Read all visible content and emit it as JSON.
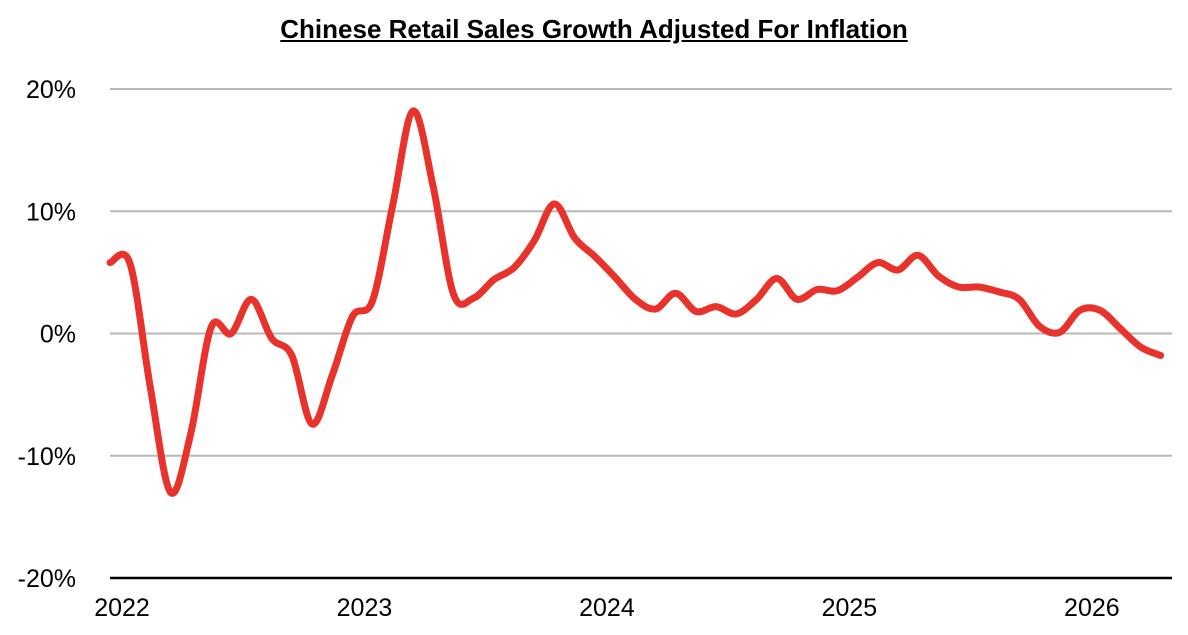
{
  "chart_data": {
    "type": "line",
    "title": "Chinese Retail Sales Growth Adjusted For Inflation",
    "xlabel": "",
    "ylabel": "",
    "x_ticks": [
      "2022",
      "2023",
      "2024",
      "2025",
      "2026"
    ],
    "y_ticks": [
      "20%",
      "10%",
      "0%",
      "-10%",
      "-20%"
    ],
    "ylim": [
      -20,
      20
    ],
    "xlim": [
      2022.0,
      2026.38
    ],
    "grid": true,
    "series": [
      {
        "color": "#e8332c",
        "x": [
          2022.0,
          2022.083,
          2022.167,
          2022.25,
          2022.333,
          2022.417,
          2022.5,
          2022.583,
          2022.667,
          2022.75,
          2022.833,
          2022.917,
          2023.0,
          2023.083,
          2023.167,
          2023.25,
          2023.333,
          2023.417,
          2023.5,
          2023.583,
          2023.667,
          2023.75,
          2023.833,
          2023.917,
          2024.0,
          2024.083,
          2024.167,
          2024.25,
          2024.333,
          2024.417,
          2024.5,
          2024.583,
          2024.667,
          2024.75,
          2024.833,
          2024.917,
          2025.0,
          2025.083,
          2025.167,
          2025.25,
          2025.333,
          2025.417,
          2025.5,
          2025.583,
          2025.667,
          2025.75,
          2025.833,
          2025.917,
          2026.0,
          2026.083,
          2026.167,
          2026.25,
          2026.333
        ],
        "values": [
          5.8,
          5.7,
          -4.5,
          -13.0,
          -8.2,
          0.5,
          0.0,
          2.8,
          -0.4,
          -1.8,
          -7.4,
          -3.4,
          1.4,
          2.7,
          10.6,
          18.2,
          12.0,
          3.2,
          2.9,
          4.4,
          5.4,
          7.6,
          10.6,
          7.8,
          6.3,
          4.6,
          2.8,
          2.0,
          3.3,
          1.8,
          2.2,
          1.6,
          2.8,
          4.5,
          2.8,
          3.6,
          3.5,
          4.6,
          5.8,
          5.2,
          6.4,
          4.7,
          3.8,
          3.8,
          3.4,
          2.8,
          0.6,
          0.1,
          1.9,
          1.9,
          0.4,
          -1.1,
          -1.8
        ]
      }
    ]
  }
}
